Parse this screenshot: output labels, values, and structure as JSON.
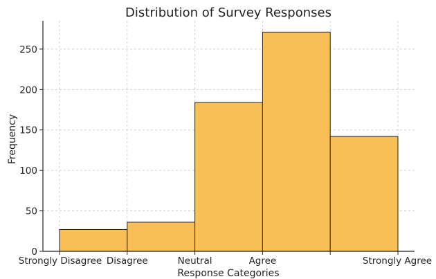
{
  "chart_data": {
    "type": "bar",
    "title": "Distribution of Survey Responses",
    "xlabel": "Response Categories",
    "ylabel": "Frequency",
    "categories": [
      "Strongly Disagree",
      "Disagree",
      "Neutral",
      "Agree",
      "Strongly Agree"
    ],
    "values": [
      27,
      36,
      184,
      271,
      142
    ],
    "ylim": [
      0,
      285
    ],
    "yticks": [
      0,
      50,
      100,
      150,
      200,
      250
    ],
    "grid": true,
    "bar_color": "#f8bf57",
    "bar_edge_color": "#222222"
  }
}
